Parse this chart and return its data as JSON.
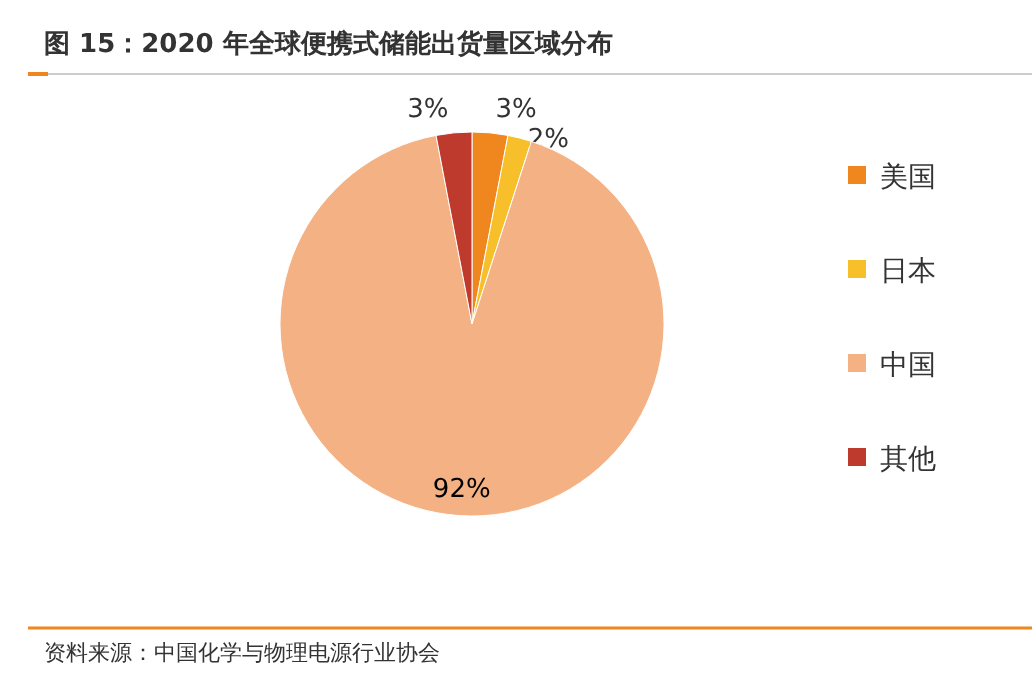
{
  "chart_data": {
    "type": "pie",
    "title": "图 15：2020 年全球便携式储能出货量区域分布",
    "categories": [
      "美国",
      "日本",
      "中国",
      "其他"
    ],
    "values": [
      3,
      2,
      92,
      3
    ],
    "value_labels": [
      "3%",
      "2%",
      "92%",
      "3%"
    ],
    "colors": [
      "#f0861e",
      "#f7c02b",
      "#f4b183",
      "#be3a2c"
    ],
    "legend": "right",
    "annotations": [
      "资料来源：中国化学与物理电源行业协会"
    ]
  }
}
